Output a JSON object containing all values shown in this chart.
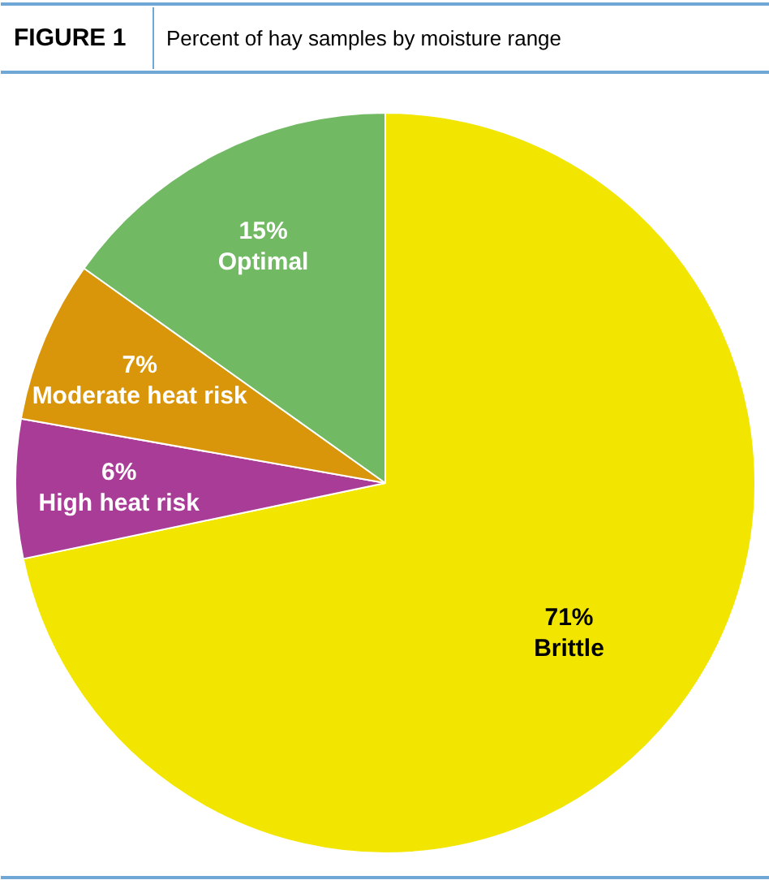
{
  "chart_data": {
    "type": "pie",
    "title": "FIGURE 1",
    "subtitle": "Percent of hay samples by moisture range",
    "categories": [
      "Brittle",
      "High heat risk",
      "Moderate heat risk",
      "Optimal"
    ],
    "values": [
      71,
      6,
      7,
      15
    ],
    "value_labels": [
      "71%",
      "6%",
      "7%",
      "15%"
    ],
    "colors": [
      "#f2e600",
      "#a83c96",
      "#d9960a",
      "#72b964"
    ]
  }
}
